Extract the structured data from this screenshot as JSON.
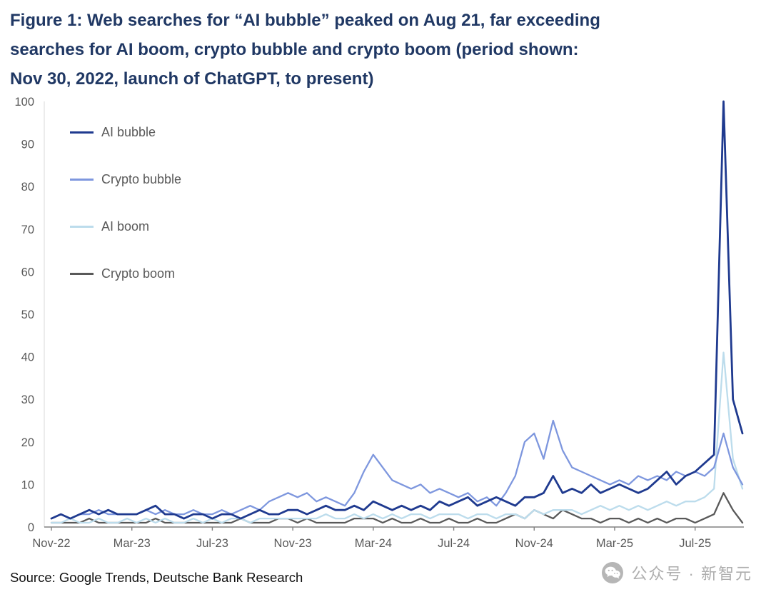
{
  "figure": {
    "title_lines": [
      "Figure 1: Web searches for “AI bubble” peaked on Aug 21, far exceeding",
      "searches for AI boom, crypto bubble and crypto boom (period shown:",
      "Nov 30, 2022, launch of ChatGPT, to present)"
    ],
    "source": "Source: Google Trends, Deutsche Bank Research",
    "watermark": "公众号 · 新智元"
  },
  "colors": {
    "title": "#203864",
    "axis_text": "#595959",
    "axis_line": "#808080",
    "left_axis_line": "#d9d9d9",
    "watermark": "#aeaeae"
  },
  "chart_data": {
    "type": "line",
    "title": "Figure 1: Web searches for “AI bubble” peaked on Aug 21, far exceeding searches for AI boom, crypto bubble and crypto boom (period shown: Nov 30, 2022, launch of ChatGPT, to present)",
    "xlabel": "",
    "ylabel": "",
    "ylim": [
      0,
      100
    ],
    "y_ticks": [
      0,
      10,
      20,
      30,
      40,
      50,
      60,
      70,
      80,
      90,
      100
    ],
    "grid": false,
    "legend_position": "top-left",
    "n_points": 74,
    "x_tick_labels": [
      "Nov-22",
      "Mar-23",
      "Jul-23",
      "Nov-23",
      "Mar-24",
      "Jul-24",
      "Nov-24",
      "Mar-25",
      "Jul-25"
    ],
    "x_tick_positions": [
      0,
      8.5,
      17,
      25.5,
      34,
      42.5,
      51,
      59.5,
      68
    ],
    "series": [
      {
        "name": "AI bubble",
        "color": "#1f3a8f",
        "width": 2.8,
        "values": [
          2,
          3,
          2,
          3,
          4,
          3,
          4,
          3,
          3,
          3,
          4,
          5,
          3,
          3,
          2,
          3,
          3,
          2,
          3,
          3,
          2,
          3,
          4,
          3,
          3,
          4,
          4,
          3,
          4,
          5,
          4,
          4,
          5,
          4,
          6,
          5,
          4,
          5,
          4,
          5,
          4,
          6,
          5,
          6,
          7,
          5,
          6,
          7,
          6,
          5,
          7,
          7,
          8,
          12,
          8,
          9,
          8,
          10,
          8,
          9,
          10,
          9,
          8,
          9,
          11,
          13,
          10,
          12,
          13,
          15,
          17,
          100,
          30,
          22
        ]
      },
      {
        "name": "Crypto bubble",
        "color": "#7e97de",
        "width": 2.3,
        "values": [
          2,
          3,
          2,
          3,
          3,
          4,
          3,
          3,
          3,
          3,
          4,
          3,
          4,
          3,
          3,
          4,
          3,
          3,
          4,
          3,
          4,
          5,
          4,
          6,
          7,
          8,
          7,
          8,
          6,
          7,
          6,
          5,
          8,
          13,
          17,
          14,
          11,
          10,
          9,
          10,
          8,
          9,
          8,
          7,
          8,
          6,
          7,
          5,
          8,
          12,
          20,
          22,
          16,
          25,
          18,
          14,
          13,
          12,
          11,
          10,
          11,
          10,
          12,
          11,
          12,
          11,
          13,
          12,
          13,
          12,
          14,
          22,
          14,
          10
        ]
      },
      {
        "name": "AI boom",
        "color": "#bcdcec",
        "width": 2.3,
        "values": [
          1,
          1,
          2,
          1,
          1,
          2,
          1,
          1,
          2,
          1,
          2,
          1,
          2,
          1,
          1,
          2,
          1,
          2,
          1,
          2,
          2,
          1,
          2,
          2,
          2,
          2,
          2,
          2,
          2,
          3,
          2,
          2,
          3,
          2,
          3,
          2,
          3,
          2,
          3,
          3,
          2,
          3,
          3,
          3,
          2,
          3,
          3,
          2,
          3,
          3,
          2,
          4,
          3,
          4,
          4,
          4,
          3,
          4,
          5,
          4,
          5,
          4,
          5,
          4,
          5,
          6,
          5,
          6,
          6,
          7,
          9,
          41,
          16,
          9
        ]
      },
      {
        "name": "Crypto boom",
        "color": "#595959",
        "width": 2.3,
        "values": [
          1,
          1,
          1,
          1,
          2,
          1,
          1,
          1,
          1,
          1,
          1,
          2,
          1,
          1,
          1,
          1,
          1,
          1,
          1,
          1,
          2,
          1,
          1,
          1,
          2,
          2,
          1,
          2,
          1,
          1,
          1,
          1,
          2,
          2,
          2,
          1,
          2,
          1,
          1,
          2,
          1,
          1,
          2,
          1,
          1,
          2,
          1,
          1,
          2,
          3,
          2,
          4,
          3,
          2,
          4,
          3,
          2,
          2,
          1,
          2,
          2,
          1,
          2,
          1,
          2,
          1,
          2,
          2,
          1,
          2,
          3,
          8,
          4,
          1
        ]
      }
    ]
  }
}
